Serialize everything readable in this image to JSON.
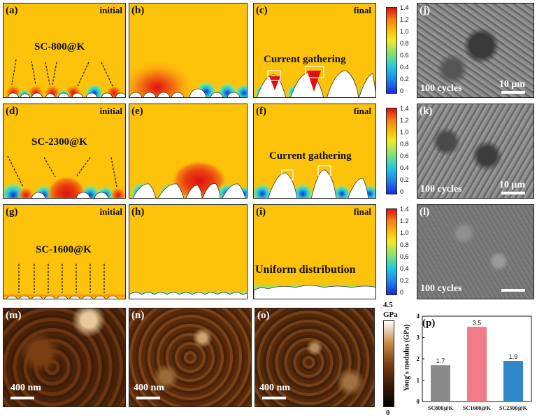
{
  "panels": {
    "a": {
      "label": "(a)",
      "tag": "initial",
      "sample": "SC-800@K"
    },
    "b": {
      "label": "(b)"
    },
    "c": {
      "label": "(c)",
      "tag": "final",
      "note": "Current gathering"
    },
    "d": {
      "label": "(d)",
      "tag": "initial",
      "sample": "SC-2300@K"
    },
    "e": {
      "label": "(e)"
    },
    "f": {
      "label": "(f)",
      "tag": "final",
      "note": "Current gathering"
    },
    "g": {
      "label": "(g)",
      "tag": "initial",
      "sample": "SC-1600@K"
    },
    "h": {
      "label": "(h)"
    },
    "i": {
      "label": "(i)",
      "tag": "final",
      "note": "Uniform distribution"
    },
    "j": {
      "label": "(j)",
      "cycles": "100 cycles",
      "scale": "10 μm"
    },
    "k": {
      "label": "(k)",
      "cycles": "100 cycles",
      "scale": "10 μm"
    },
    "l": {
      "label": "(l)",
      "cycles": "100 cycles"
    },
    "m": {
      "label": "(m)",
      "scale": "400 nm"
    },
    "n": {
      "label": "(n)",
      "scale": "400 nm"
    },
    "o": {
      "label": "(o)",
      "scale": "400 nm"
    },
    "p": {
      "label": "(p)"
    }
  },
  "colorbar": {
    "ticks": [
      "1.4",
      "1.2",
      "1.0",
      "0.8",
      "0.6",
      "0.4",
      "0.2",
      "0"
    ]
  },
  "afm_bar": {
    "max": "4.5",
    "unit": "GPa",
    "min": "0"
  },
  "colors": {
    "sim_bg": "#fdc20a",
    "hot": "#e01010",
    "cold": "#1a2bd8",
    "bar1": "#8a8a8a",
    "bar2": "#f07a86",
    "bar3": "#2f86c8"
  },
  "chart_data": {
    "type": "bar",
    "categories": [
      "SC800@K",
      "SC1600@K",
      "SC2300@K"
    ],
    "values": [
      1.7,
      3.5,
      1.9
    ],
    "value_labels": [
      "1.7",
      "3.5",
      "1.9"
    ],
    "ylabel": "Yong's modulus (GPa)",
    "ylim": [
      0,
      4
    ],
    "yticks": [
      "0",
      "1",
      "2",
      "3",
      "4"
    ]
  }
}
